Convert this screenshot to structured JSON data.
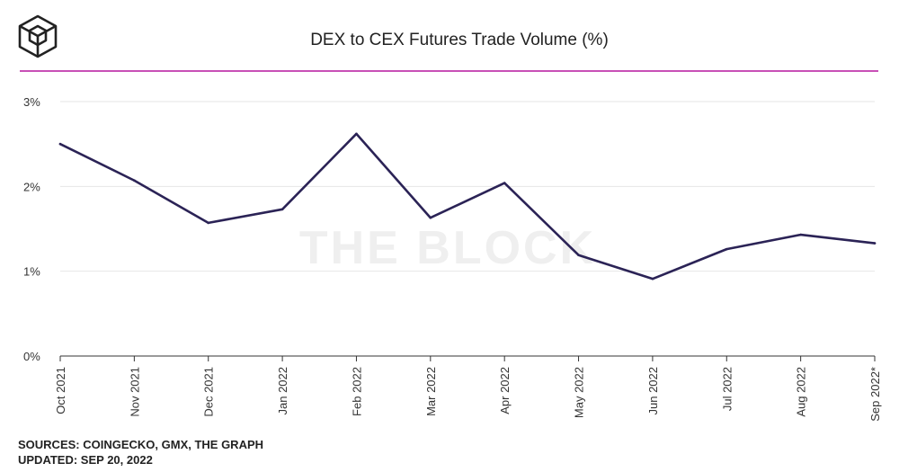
{
  "header": {
    "title": "DEX to CEX Futures Trade Volume (%)",
    "logo_icon": "the-block-cube-logo-icon",
    "accent_color": "#b5179e"
  },
  "watermark": "THE BLOCK",
  "chart_data": {
    "type": "line",
    "title": "DEX to CEX Futures Trade Volume (%)",
    "categories": [
      "Oct 2021",
      "Nov 2021",
      "Dec 2021",
      "Jan 2022",
      "Feb 2022",
      "Mar 2022",
      "Apr 2022",
      "May 2022",
      "Jun 2022",
      "Jul 2022",
      "Aug 2022",
      "Sep 2022*"
    ],
    "series": [
      {
        "values": [
          2.5,
          2.07,
          1.57,
          1.73,
          2.62,
          1.63,
          2.04,
          1.19,
          0.91,
          1.26,
          1.43,
          1.33
        ],
        "color": "#2b2356"
      }
    ],
    "xlabel": "",
    "ylabel": "",
    "ylim": [
      0,
      3
    ],
    "yticks": [
      0,
      1,
      2,
      3
    ],
    "ytick_labels": [
      "0%",
      "1%",
      "2%",
      "3%"
    ],
    "grid": true,
    "legend": "none"
  },
  "footer": {
    "sources": "SOURCES: COINGECKO, GMX, THE GRAPH",
    "updated": "UPDATED: SEP 20, 2022"
  }
}
